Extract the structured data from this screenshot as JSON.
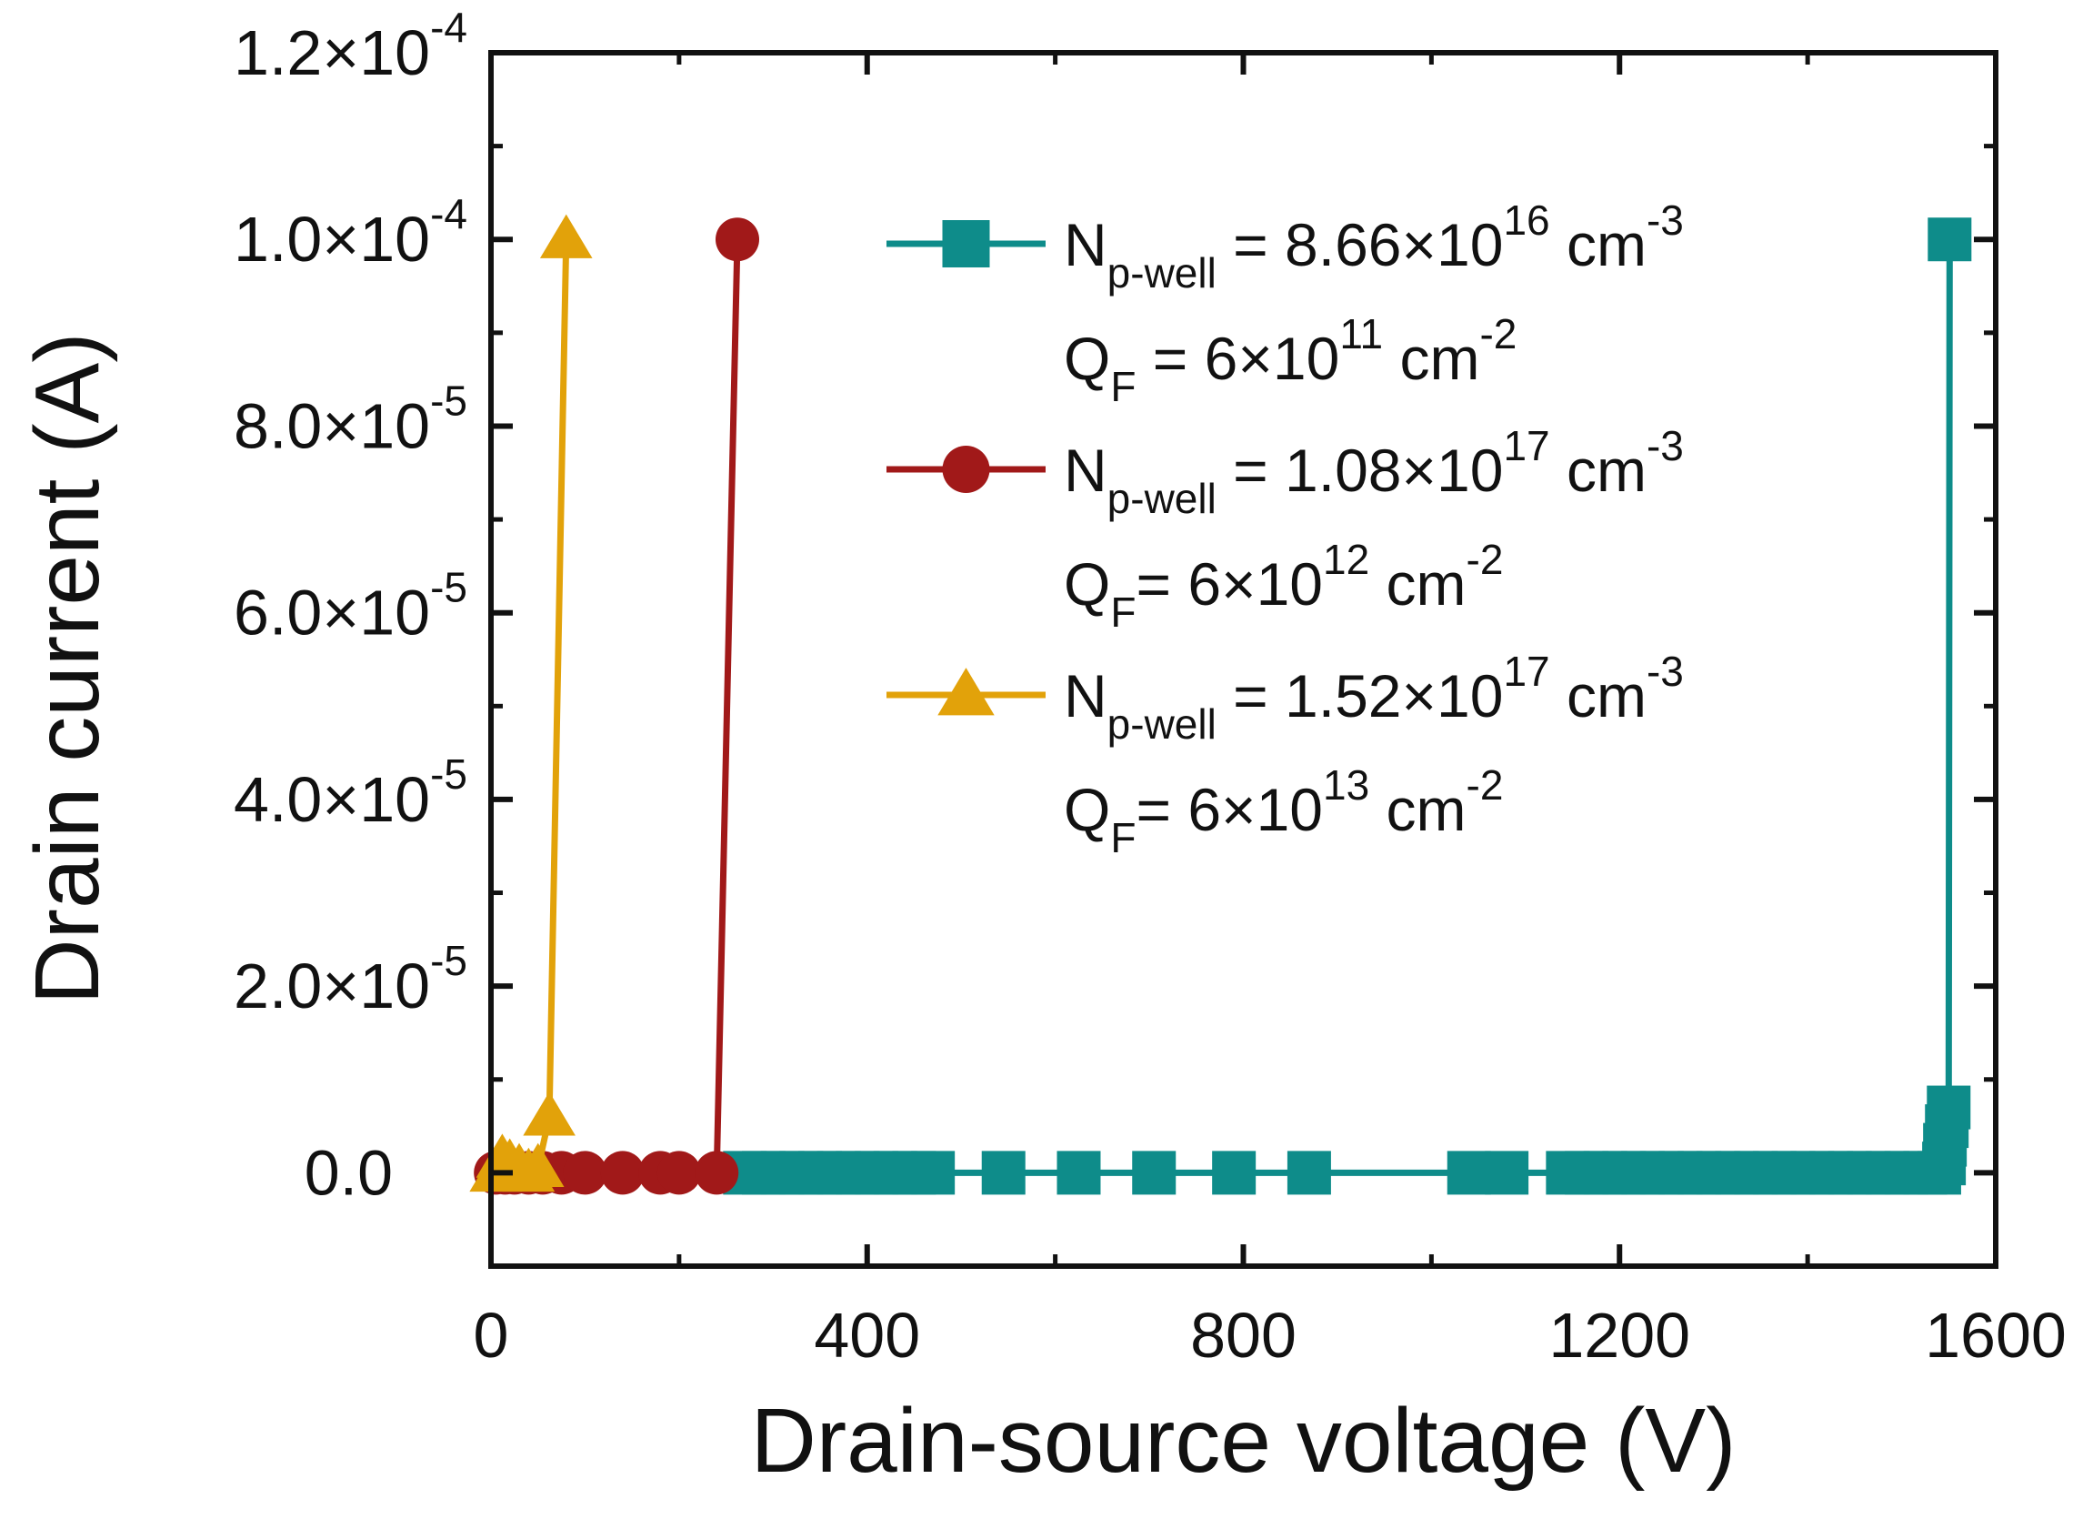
{
  "chart_data": {
    "type": "line",
    "xlabel": "Drain-source voltage (V)",
    "ylabel": "Drain current (A)",
    "xlim": [
      0,
      1600
    ],
    "ylim": [
      -1e-05,
      0.00012
    ],
    "x_ticks": [
      {
        "value": 0,
        "label": "0"
      },
      {
        "value": 400,
        "label": "400"
      },
      {
        "value": 800,
        "label": "800"
      },
      {
        "value": 1200,
        "label": "1200"
      },
      {
        "value": 1600,
        "label": "1600"
      }
    ],
    "y_ticks": [
      {
        "value": 0,
        "mantissa": "0.0",
        "exponent": ""
      },
      {
        "value": 2e-05,
        "mantissa": "2.0×10",
        "exponent": "-5"
      },
      {
        "value": 4e-05,
        "mantissa": "4.0×10",
        "exponent": "-5"
      },
      {
        "value": 6e-05,
        "mantissa": "6.0×10",
        "exponent": "-5"
      },
      {
        "value": 8e-05,
        "mantissa": "8.0×10",
        "exponent": "-5"
      },
      {
        "value": 0.0001,
        "mantissa": "1.0×10",
        "exponent": "-4"
      },
      {
        "value": 0.00012,
        "mantissa": "1.2×10",
        "exponent": "-4"
      }
    ],
    "legend_position": "top-right",
    "series": [
      {
        "name": "Np-well = 8.66×10^16 cm^-3, QF = 6×10^11 cm^-2",
        "color": "#0e8c8a",
        "marker": "square",
        "legend_line1": {
          "main": "N",
          "sub": "p-well",
          "mid": " = 8.66×10",
          "sup": "16",
          "tail": " cm",
          "tail_sup": "-3"
        },
        "legend_line2": {
          "main": "Q",
          "sub": "F",
          "mid": " = 6×10",
          "sup": "11",
          "tail": " cm",
          "tail_sup": "-2"
        },
        "x": [
          270,
          290,
          310,
          330,
          350,
          370,
          390,
          410,
          430,
          450,
          470,
          545,
          625,
          705,
          790,
          870,
          1040,
          1080,
          1145,
          1165,
          1185,
          1205,
          1225,
          1245,
          1265,
          1285,
          1305,
          1325,
          1345,
          1365,
          1385,
          1405,
          1425,
          1445,
          1465,
          1485,
          1505,
          1525,
          1540,
          1545,
          1546,
          1548,
          1550,
          1551
        ],
        "y": [
          0,
          0,
          0,
          0,
          0,
          0,
          0,
          0,
          0,
          0,
          0,
          0,
          0,
          0,
          0,
          0,
          0,
          0,
          0,
          0,
          0,
          0,
          0,
          0,
          0,
          0,
          0,
          0,
          0,
          0,
          0,
          0,
          0,
          0,
          0,
          0,
          0,
          0,
          0,
          1e-06,
          3e-06,
          5e-06,
          7e-06,
          0.0001
        ]
      },
      {
        "name": "Np-well = 1.08×10^17 cm^-3, QF = 6×10^12 cm^-2",
        "color": "#a11919",
        "marker": "circle",
        "legend_line1": {
          "main": "N",
          "sub": "p-well",
          "mid": " = 1.08×10",
          "sup": "17",
          "tail": " cm",
          "tail_sup": "-3"
        },
        "legend_line2": {
          "main": "Q",
          "sub": "F",
          "mid": "= 6×10",
          "sup": "12",
          "tail": " cm",
          "tail_sup": "-2"
        },
        "x": [
          5,
          15,
          25,
          40,
          55,
          75,
          100,
          140,
          180,
          200,
          240,
          262
        ],
        "y": [
          0,
          0,
          0,
          0,
          0,
          0,
          0,
          0,
          0,
          0,
          0,
          0.0001
        ]
      },
      {
        "name": "Np-well = 1.52×10^17 cm^-3, QF = 6×10^13 cm^-2",
        "color": "#e2a20a",
        "marker": "triangle",
        "legend_line1": {
          "main": "N",
          "sub": "p-well",
          "mid": " = 1.52×10",
          "sup": "17",
          "tail": " cm",
          "tail_sup": "-3"
        },
        "legend_line2": {
          "main": "Q",
          "sub": "F",
          "mid": "= 6×10",
          "sup": "13",
          "tail": " cm",
          "tail_sup": "-2"
        },
        "x": [
          5,
          12,
          20,
          30,
          40,
          50,
          62,
          80
        ],
        "y": [
          0,
          1.5e-06,
          1e-06,
          5e-07,
          0,
          5e-07,
          6e-06,
          0.0001
        ]
      }
    ]
  }
}
